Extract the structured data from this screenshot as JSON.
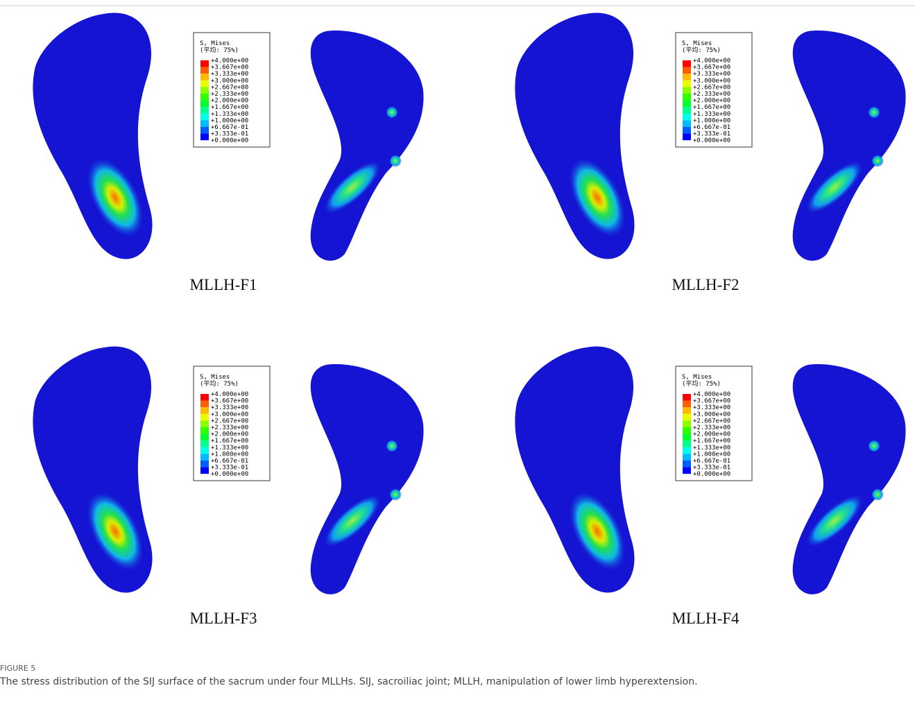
{
  "panels": [
    {
      "label": "MLLH-F1",
      "legend": {
        "title": "S, Mises",
        "subtitle": "(平均: 75%)",
        "labels": [
          "+4.000e+00",
          "+3.667e+00",
          "+3.333e+00",
          "+3.000e+00",
          "+2.667e+00",
          "+2.333e+00",
          "+2.000e+00",
          "+1.667e+00",
          "+1.333e+00",
          "+1.000e+00",
          "+6.667e-01",
          "+3.333e-01",
          "+0.000e+00"
        ]
      }
    },
    {
      "label": "MLLH-F2",
      "legend": {
        "title": "S, Mises",
        "subtitle": "(平均: 75%)",
        "labels": [
          "+4.000e+00",
          "+3.667e+00",
          "+3.333e+00",
          "+3.000e+00",
          "+2.667e+00",
          "+2.333e+00",
          "+2.000e+00",
          "+1.667e+00",
          "+1.333e+00",
          "+1.000e+00",
          "+6.667e-01",
          "+3.333e-01",
          "+0.000e+00"
        ]
      }
    },
    {
      "label": "MLLH-F3",
      "legend": {
        "title": "S, Mises",
        "subtitle": "(平均: 75%)",
        "labels": [
          "+4.000e+00",
          "+3.667e+00",
          "+3.333e+00",
          "+3.000e+00",
          "+2.667e+00",
          "+2.333e+00",
          "+2.000e+00",
          "+1.667e+00",
          "+1.333e+00",
          "+1.000e+00",
          "+6.667e-01",
          "+3.333e-01",
          "+0.000e+00"
        ]
      }
    },
    {
      "label": "MLLH-F4",
      "legend": {
        "title": "S, Mises",
        "subtitle": "(平均: 75%)",
        "labels": [
          "+4.000e+00",
          "+3.667e+00",
          "+3.333e+00",
          "+3.000e+00",
          "+2.667e+00",
          "+2.333e+00",
          "+2.000e+00",
          "+1.667e+00",
          "+1.333e+00",
          "+1.000e+00",
          "+6.667e-01",
          "+3.333e-01",
          "+0.000e+00"
        ]
      }
    }
  ],
  "caption": {
    "figure": "FIGURE 5",
    "text": "The stress distribution of the SIJ surface of the sacrum under four MLLHs. SIJ, sacroiliac joint; MLLH, manipulation of lower limb hyperextension."
  }
}
